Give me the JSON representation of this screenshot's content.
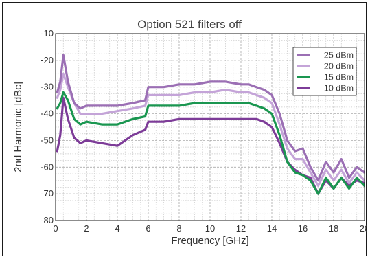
{
  "chart_data": {
    "type": "line",
    "title": "Option 521 filters off",
    "xlabel": "Frequency [GHz]",
    "ylabel": "2nd Harmonic [dBc]",
    "xlim": [
      0,
      20
    ],
    "ylim": [
      -80,
      -10
    ],
    "xticks": [
      "0",
      "2",
      "4",
      "6",
      "8",
      "10",
      "12",
      "14",
      "16",
      "18",
      "20"
    ],
    "yticks": [
      "-10",
      "-20",
      "-30",
      "-40",
      "-50",
      "-60",
      "-70",
      "-80"
    ],
    "grid": true,
    "legend_position": "top-right",
    "x": [
      0.1,
      0.3,
      0.5,
      0.8,
      1.2,
      1.6,
      2,
      3,
      4,
      5,
      5.8,
      6,
      7,
      8,
      9,
      10,
      11,
      12,
      12.5,
      13,
      13.5,
      14,
      14.5,
      15,
      15.5,
      16,
      16.5,
      17,
      17.5,
      18,
      18.5,
      19,
      19.5,
      20
    ],
    "series": [
      {
        "name": "25 dBm",
        "color": "#9b6fb4",
        "values": [
          -32,
          -28,
          -18,
          -28,
          -36,
          -38,
          -37,
          -37,
          -37,
          -36,
          -35,
          -30,
          -30,
          -29,
          -29,
          -28,
          -28,
          -29,
          -29,
          -30,
          -31,
          -33,
          -40,
          -50,
          -54,
          -53,
          -60,
          -65,
          -58,
          -62,
          -57,
          -64,
          -60,
          -62
        ]
      },
      {
        "name": "20 dBm",
        "color": "#c4a4d8",
        "values": [
          -34,
          -31,
          -25,
          -30,
          -36,
          -40,
          -40,
          -40,
          -39,
          -38,
          -37,
          -33,
          -33,
          -33,
          -32,
          -32,
          -31,
          -32,
          -32,
          -33,
          -34,
          -36,
          -44,
          -53,
          -57,
          -57,
          -62,
          -67,
          -61,
          -65,
          -61,
          -66,
          -62,
          -65
        ]
      },
      {
        "name": "15 dBm",
        "color": "#1a9650",
        "values": [
          -38,
          -36,
          -32,
          -35,
          -42,
          -44,
          -43,
          -44,
          -44,
          -42,
          -41,
          -37,
          -37,
          -37,
          -36,
          -36,
          -36,
          -36,
          -36,
          -37,
          -38,
          -40,
          -48,
          -58,
          -62,
          -63,
          -65,
          -70,
          -64,
          -68,
          -64,
          -68,
          -64,
          -67
        ]
      },
      {
        "name": "10 dBm",
        "color": "#7d3c98",
        "values": [
          -54,
          -48,
          -34,
          -42,
          -49,
          -51,
          -50,
          -51,
          -52,
          -48,
          -46,
          -43,
          -43,
          -42,
          -42,
          -42,
          -42,
          -42,
          -42,
          -42,
          -43,
          -45,
          -51,
          -58,
          -61,
          -63,
          -64,
          -70,
          -65,
          -68,
          -64,
          -67,
          -65,
          -66
        ]
      }
    ]
  }
}
